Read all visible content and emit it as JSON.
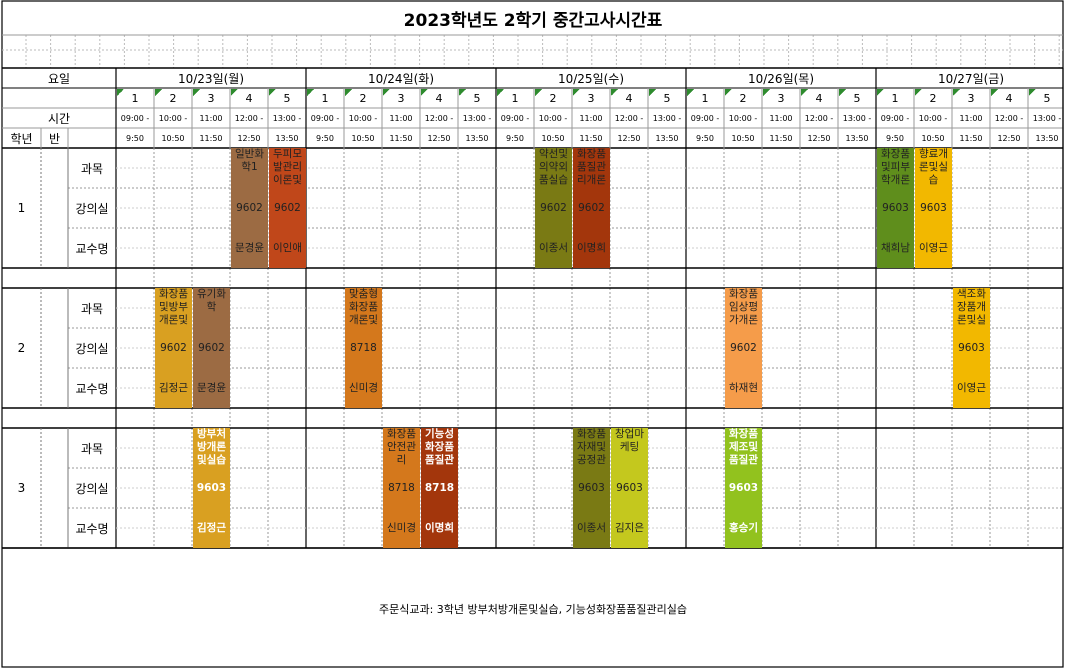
{
  "title": "2023학년도 2학기 중간고사시간표",
  "header": {
    "yoil_label": "요일",
    "time_label": "시간",
    "grade_label": "학년",
    "class_label": "반"
  },
  "days": [
    "10/23일(월)",
    "10/24일(화)",
    "10/25일(수)",
    "10/26일(목)",
    "10/27일(금)"
  ],
  "periods": [
    "1",
    "2",
    "3",
    "4",
    "5"
  ],
  "start_times": [
    "09:00 -",
    "10:00 -",
    "11:00",
    "12:00 -",
    "13:00 -"
  ],
  "end_times": [
    "9:50",
    "10:50",
    "11:50",
    "12:50",
    "13:50"
  ],
  "row_labels": [
    "과목",
    "강의실",
    "교수명"
  ],
  "grades": [
    "1",
    "2",
    "3"
  ],
  "schedule": [
    {
      "grade": 1,
      "day": 0,
      "period": 3,
      "subject": "일반화학1",
      "room": "9602",
      "prof": "문경윤",
      "color": "#9c6b43"
    },
    {
      "grade": 1,
      "day": 0,
      "period": 4,
      "subject": "두피모발관리이론및",
      "room": "9602",
      "prof": "이인애",
      "color": "#c0471a"
    },
    {
      "grade": 1,
      "day": 2,
      "period": 1,
      "subject": "약선및의약외품실습",
      "room": "9602",
      "prof": "이종서",
      "color": "#7a7a14"
    },
    {
      "grade": 1,
      "day": 2,
      "period": 2,
      "subject": "화장품품질관리개론",
      "room": "9602",
      "prof": "이명희",
      "color": "#a3360c"
    },
    {
      "grade": 1,
      "day": 4,
      "period": 0,
      "subject": "화장품및피부학개론",
      "room": "9603",
      "prof": "채희남",
      "color": "#5f8e1c"
    },
    {
      "grade": 1,
      "day": 4,
      "period": 1,
      "subject": "향료개론및실습",
      "room": "9603",
      "prof": "이영근",
      "color": "#f2b800"
    },
    {
      "grade": 2,
      "day": 0,
      "period": 1,
      "subject": "화장품및방부개론및",
      "room": "9602",
      "prof": "김정근",
      "color": "#d9a021"
    },
    {
      "grade": 2,
      "day": 0,
      "period": 2,
      "subject": "유기화학",
      "room": "9602",
      "prof": "문경윤",
      "color": "#9c6b43"
    },
    {
      "grade": 2,
      "day": 1,
      "period": 1,
      "subject": "맞춤형화장품개론및",
      "room": "8718",
      "prof": "신미경",
      "color": "#d4781c"
    },
    {
      "grade": 2,
      "day": 3,
      "period": 1,
      "subject": "화장품임상평가개론",
      "room": "9602",
      "prof": "하재현",
      "color": "#f59c4a"
    },
    {
      "grade": 2,
      "day": 4,
      "period": 2,
      "subject": "색조화장품개론및실",
      "room": "9603",
      "prof": "이영근",
      "color": "#f2b800"
    },
    {
      "grade": 3,
      "day": 0,
      "period": 2,
      "subject": "방부처방개론및실습",
      "room": "9603",
      "prof": "김정근",
      "color": "#d9a021",
      "white": true
    },
    {
      "grade": 3,
      "day": 1,
      "period": 2,
      "subject": "화장품안전관리",
      "room": "8718",
      "prof": "신미경",
      "color": "#d4781c"
    },
    {
      "grade": 3,
      "day": 1,
      "period": 3,
      "subject": "기능성화장품품질관",
      "room": "8718",
      "prof": "이명희",
      "color": "#a3360c",
      "white": true
    },
    {
      "grade": 3,
      "day": 2,
      "period": 2,
      "subject": "화장품자재및공정관",
      "room": "9603",
      "prof": "이종서",
      "color": "#7a7a14"
    },
    {
      "grade": 3,
      "day": 2,
      "period": 3,
      "subject": "창업마케팅",
      "room": "9603",
      "prof": "김지은",
      "color": "#c4c81e"
    },
    {
      "grade": 3,
      "day": 3,
      "period": 1,
      "subject": "화장품제조및품질관",
      "room": "9603",
      "prof": "홍승기",
      "color": "#92c21e",
      "white": true
    }
  ],
  "note": "주문식교과: 3학년 방부처방개론및실습, 기능성화장품품질관리실습"
}
